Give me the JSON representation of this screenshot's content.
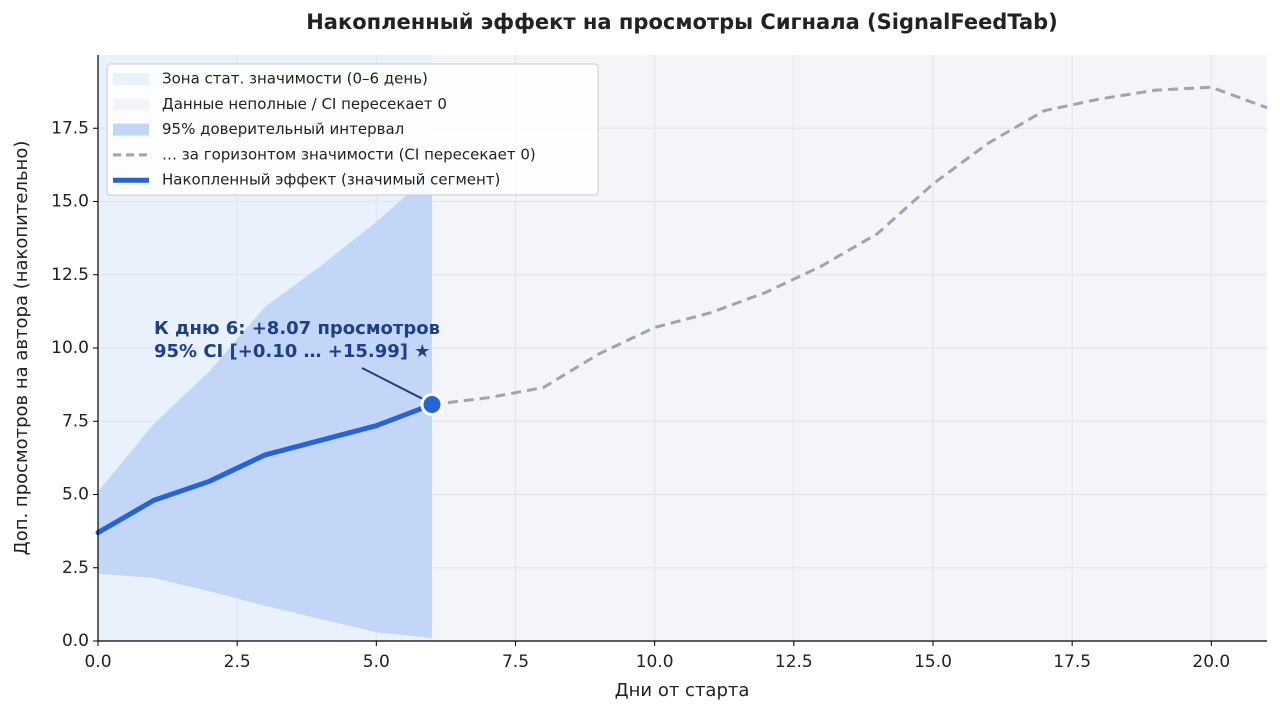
{
  "chart_data": {
    "type": "line",
    "title": "Накопленный эффект на просмотры Сигнала (SignalFeedTab)",
    "x_label": "Дни от старта",
    "y_label": "Доп. просмотров на автора (накопительно)",
    "x": [
      0,
      1,
      2,
      3,
      4,
      5,
      6,
      7,
      8,
      9,
      10,
      11,
      12,
      13,
      14,
      15,
      16,
      17,
      18,
      19,
      20,
      21
    ],
    "xlim": [
      0,
      21
    ],
    "ylim": [
      0,
      20
    ],
    "xticks": [
      {
        "value": 0,
        "label": "0.0"
      },
      2.5,
      {
        "value": 5,
        "label": "5.0"
      },
      7.5,
      {
        "value": 10,
        "label": "10.0"
      },
      12.5,
      {
        "value": 15,
        "label": "15.0"
      },
      17.5,
      {
        "value": 20,
        "label": "20.0"
      }
    ],
    "yticks": [
      {
        "value": 0,
        "label": "0.0"
      },
      2.5,
      {
        "value": 5,
        "label": "5.0"
      },
      7.5,
      {
        "value": 10,
        "label": "10.0"
      },
      12.5,
      {
        "value": 15,
        "label": "15.0"
      },
      17.5
    ],
    "grid": true,
    "legend": "upper left",
    "spans": [
      {
        "name": "Зона стат. значимости (0–6 день)",
        "start": 0,
        "end": 6,
        "color": "#e8f1fc"
      },
      {
        "name": "Данные неполные / CI пересекает 0",
        "start": 6,
        "end": 21,
        "color": "#f4f5f9"
      }
    ],
    "band": {
      "name": "95% доверительный интервал",
      "color": "#c3d6f7",
      "lower": [
        2.3,
        2.15,
        1.7,
        1.2,
        0.75,
        0.3,
        0.1,
        null,
        null,
        null,
        null,
        null,
        null,
        null,
        null,
        null,
        null,
        null,
        null,
        null,
        null,
        null
      ],
      "upper": [
        5.1,
        7.4,
        9.2,
        11.4,
        12.8,
        14.3,
        15.99,
        null,
        null,
        null,
        null,
        null,
        null,
        null,
        null,
        null,
        null,
        null,
        null,
        null,
        null,
        null
      ]
    },
    "series": [
      {
        "name": "… за горизонтом значимости (CI пересекает 0)",
        "color": "#a0a3b4",
        "dashed": true,
        "values": [
          null,
          null,
          null,
          null,
          null,
          null,
          8.07,
          8.3,
          8.65,
          9.8,
          10.7,
          11.2,
          11.9,
          12.8,
          13.9,
          15.6,
          17.0,
          18.1,
          18.5,
          18.8,
          18.9,
          18.2
        ]
      },
      {
        "name": "Накопленный эффект (значимый сегмент)",
        "color": "#2563d9",
        "dashed": false,
        "values": [
          3.7,
          4.8,
          5.45,
          6.35,
          6.85,
          7.35,
          8.07,
          null,
          null,
          null,
          null,
          null,
          null,
          null,
          null,
          null,
          null,
          null,
          null,
          null,
          null,
          null
        ]
      }
    ],
    "annotation": {
      "lines": [
        "К дню 6: +8.07 просмотров",
        "95% CI [+0.10 … +15.99] ★"
      ],
      "color": "#1f3f86"
    }
  }
}
